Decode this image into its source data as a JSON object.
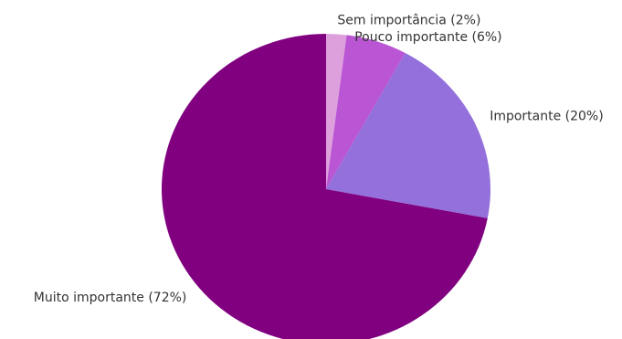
{
  "chart_data": {
    "type": "pie",
    "start_angle_deg": 90,
    "direction": "clockwise",
    "slices": [
      {
        "label": "Sem importância (2%)",
        "value": 2,
        "color": "#dda0dd"
      },
      {
        "label": "Pouco importante (6%)",
        "value": 6,
        "color": "#ba55d3"
      },
      {
        "label": "Importante (20%)",
        "value": 20,
        "color": "#9370db"
      },
      {
        "label": "Muito importante (72%)",
        "value": 72,
        "color": "#800080"
      }
    ]
  }
}
